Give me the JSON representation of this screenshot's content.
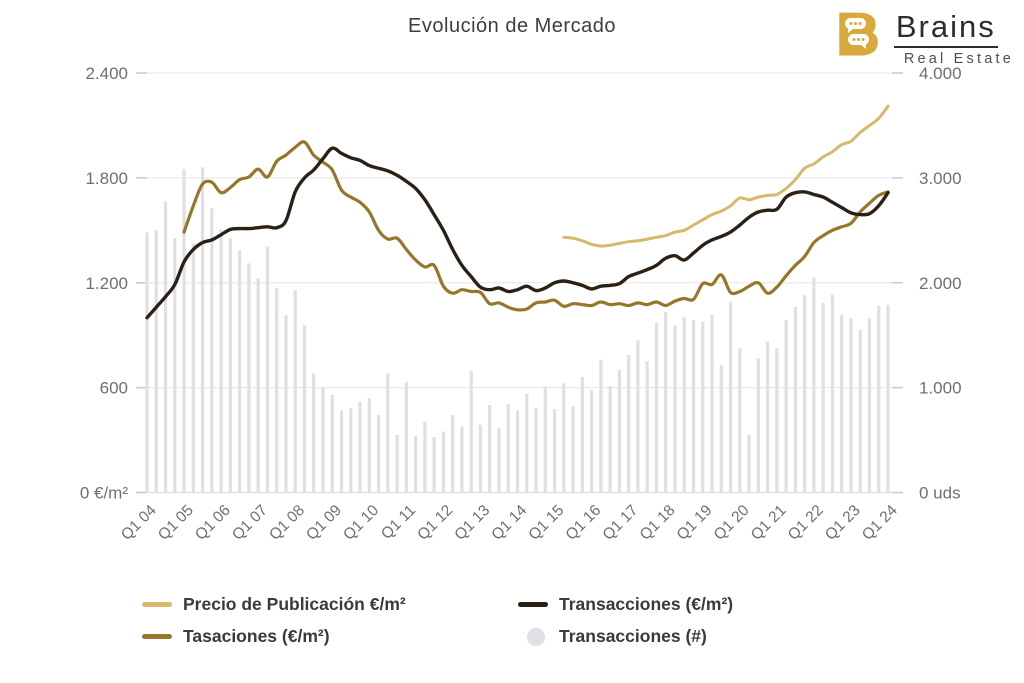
{
  "title": "Evolución de Mercado",
  "logo": {
    "letter": "B",
    "brand": "Brains",
    "subtitle": "Real Estate",
    "gold": "#d9a93e"
  },
  "colors": {
    "publication_gold": "#d8b86a",
    "appraisal_olive": "#967729",
    "transaction_dark": "#2b2015",
    "bars_gray": "#e0e0e4",
    "grid": "#eaeaea",
    "axis_text": "#6f6f6f",
    "title_text": "#3e3e3e"
  },
  "chart_data": {
    "type": "combo",
    "title": "Evolución de Mercado",
    "n_points": 81,
    "points_per_tick": 4,
    "x_tick_labels": [
      "Q1 04",
      "Q1 05",
      "Q1 06",
      "Q1 07",
      "Q1 08",
      "Q1 09",
      "Q1 10",
      "Q1 11",
      "Q1 12",
      "Q1 13",
      "Q1 14",
      "Q1 15",
      "Q1 16",
      "Q1 17",
      "Q1 18",
      "Q1 19",
      "Q1 20",
      "Q1 21",
      "Q1 22",
      "Q1 23",
      "Q1 24"
    ],
    "left_axis": {
      "max": 2400,
      "tick_values": [
        0,
        600,
        1200,
        1800,
        2400
      ],
      "tick_labels": [
        "0 €/m²",
        "600",
        "1.200",
        "1.800",
        "2.400"
      ]
    },
    "right_axis": {
      "max": 4000,
      "tick_values": [
        0,
        1000,
        2000,
        3000,
        4000
      ],
      "tick_labels": [
        "0 uds",
        "1.000",
        "2.000",
        "3.000",
        "4.000"
      ]
    },
    "grid_values": [
      600,
      1200,
      1800,
      2400
    ],
    "legend": [
      {
        "label": "Precio de Publicación €/m²",
        "color": "#d8b86a",
        "shape": "line"
      },
      {
        "label": "Transacciones (€/m²)",
        "color": "#2b2015",
        "shape": "line"
      },
      {
        "label": "Tasaciones (€/m²)",
        "color": "#967729",
        "shape": "line"
      },
      {
        "label": "Transacciones (#)",
        "color": "#e0e0e4",
        "shape": "circle"
      }
    ],
    "series": [
      {
        "name": "Transacciones (#)",
        "type": "bar",
        "axis": "right",
        "color": "#e0e0e4",
        "values": [
          2480,
          2500,
          2775,
          2425,
          3085,
          2375,
          3100,
          2710,
          2505,
          2425,
          2310,
          2185,
          2040,
          2345,
          1950,
          1690,
          1930,
          1595,
          1135,
          1000,
          930,
          785,
          805,
          865,
          900,
          740,
          1135,
          550,
          1055,
          540,
          675,
          530,
          580,
          740,
          630,
          1160,
          645,
          835,
          620,
          845,
          785,
          940,
          810,
          1010,
          795,
          1040,
          820,
          1100,
          975,
          1265,
          1015,
          1170,
          1310,
          1450,
          1250,
          1615,
          1725,
          1595,
          1675,
          1645,
          1630,
          1695,
          1215,
          1820,
          1375,
          550,
          1280,
          1440,
          1375,
          1645,
          1770,
          1885,
          2050,
          1810,
          1885,
          1695,
          1660,
          1550,
          1660,
          1780,
          1790
        ]
      },
      {
        "name": "Tasaciones (€/m²)",
        "type": "line",
        "axis": "left",
        "color": "#967729",
        "width": 3.2,
        "values": [
          null,
          null,
          null,
          null,
          1490,
          1640,
          1765,
          1775,
          1715,
          1745,
          1790,
          1805,
          1850,
          1805,
          1895,
          1930,
          1975,
          2005,
          1930,
          1890,
          1845,
          1730,
          1690,
          1660,
          1605,
          1500,
          1450,
          1455,
          1390,
          1330,
          1290,
          1300,
          1180,
          1140,
          1160,
          1150,
          1145,
          1080,
          1085,
          1060,
          1045,
          1050,
          1085,
          1090,
          1100,
          1065,
          1080,
          1075,
          1070,
          1090,
          1075,
          1080,
          1070,
          1085,
          1075,
          1090,
          1070,
          1095,
          1110,
          1105,
          1195,
          1190,
          1245,
          1145,
          1150,
          1180,
          1200,
          1140,
          1175,
          1240,
          1300,
          1350,
          1430,
          1470,
          1500,
          1520,
          1540,
          1605,
          1655,
          1700,
          1720
        ]
      },
      {
        "name": "Transacciones (€/m²)",
        "type": "line",
        "axis": "left",
        "color": "#2b2015",
        "width": 3.4,
        "values": [
          1000,
          1060,
          1120,
          1190,
          1320,
          1390,
          1430,
          1445,
          1475,
          1505,
          1510,
          1510,
          1515,
          1520,
          1515,
          1555,
          1720,
          1800,
          1845,
          1910,
          1970,
          1940,
          1915,
          1900,
          1870,
          1855,
          1840,
          1815,
          1780,
          1740,
          1675,
          1590,
          1500,
          1390,
          1300,
          1235,
          1175,
          1160,
          1170,
          1150,
          1160,
          1180,
          1155,
          1170,
          1200,
          1210,
          1200,
          1185,
          1165,
          1180,
          1185,
          1195,
          1235,
          1255,
          1275,
          1300,
          1340,
          1355,
          1330,
          1370,
          1415,
          1445,
          1465,
          1490,
          1530,
          1575,
          1605,
          1615,
          1620,
          1690,
          1715,
          1720,
          1705,
          1690,
          1660,
          1630,
          1600,
          1590,
          1595,
          1640,
          1715
        ]
      },
      {
        "name": "Precio de Publicación €/m²",
        "type": "line",
        "axis": "left",
        "color": "#d8b86a",
        "width": 3,
        "values": [
          null,
          null,
          null,
          null,
          null,
          null,
          null,
          null,
          null,
          null,
          null,
          null,
          null,
          null,
          null,
          null,
          null,
          null,
          null,
          null,
          null,
          null,
          null,
          null,
          null,
          null,
          null,
          null,
          null,
          null,
          null,
          null,
          null,
          null,
          null,
          null,
          null,
          null,
          null,
          null,
          null,
          null,
          null,
          null,
          null,
          1460,
          1455,
          1440,
          1420,
          1410,
          1415,
          1425,
          1435,
          1440,
          1450,
          1460,
          1470,
          1490,
          1500,
          1530,
          1560,
          1590,
          1610,
          1640,
          1685,
          1675,
          1690,
          1700,
          1705,
          1740,
          1790,
          1855,
          1880,
          1920,
          1950,
          1990,
          2010,
          2060,
          2100,
          2140,
          2210
        ]
      }
    ]
  }
}
